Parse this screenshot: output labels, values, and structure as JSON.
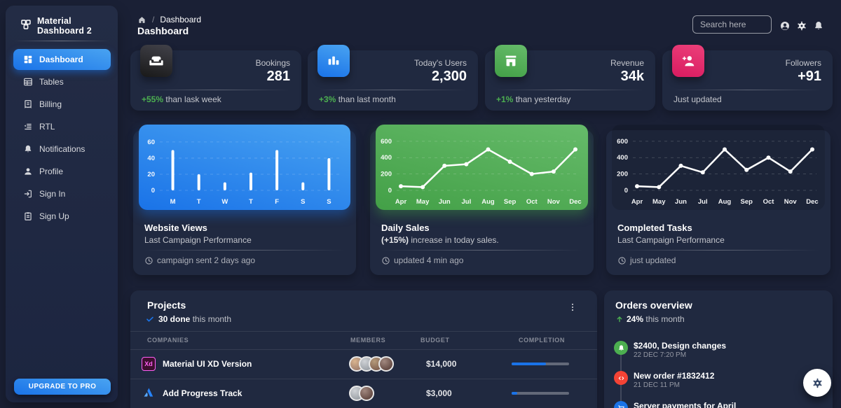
{
  "app": {
    "brand": "Material Dashboard 2"
  },
  "sidebar": {
    "items": [
      {
        "label": "Dashboard",
        "icon": "dashboard-icon",
        "active": true
      },
      {
        "label": "Tables",
        "icon": "table-icon",
        "active": false
      },
      {
        "label": "Billing",
        "icon": "receipt-icon",
        "active": false
      },
      {
        "label": "RTL",
        "icon": "rtl-icon",
        "active": false
      },
      {
        "label": "Notifications",
        "icon": "bell-icon",
        "active": false
      },
      {
        "label": "Profile",
        "icon": "person-icon",
        "active": false
      },
      {
        "label": "Sign In",
        "icon": "login-icon",
        "active": false
      },
      {
        "label": "Sign Up",
        "icon": "assignment-icon",
        "active": false
      }
    ],
    "upgrade_label": "UPGRADE TO PRO"
  },
  "header": {
    "breadcrumb_separator": "/",
    "breadcrumb_current": "Dashboard",
    "page_title": "Dashboard",
    "search_placeholder": "Search here",
    "icons": [
      "account-icon",
      "settings-icon",
      "bell-icon"
    ]
  },
  "stat_cards": [
    {
      "label": "Bookings",
      "value": "281",
      "delta": "+55%",
      "footer_rest": " than lask week",
      "icon": "weekend-icon",
      "accent": "dark"
    },
    {
      "label": "Today's Users",
      "value": "2,300",
      "delta": "+3%",
      "footer_rest": " than last month",
      "icon": "leaderboard-icon",
      "accent": "blue"
    },
    {
      "label": "Revenue",
      "value": "34k",
      "delta": "+1%",
      "footer_rest": " than yesterday",
      "icon": "store-icon",
      "accent": "green"
    },
    {
      "label": "Followers",
      "value": "+91",
      "delta": "",
      "footer_rest": "Just updated",
      "icon": "person-add-icon",
      "accent": "pink"
    }
  ],
  "chart_cards": [
    {
      "title": "Website Views",
      "subtitle_bold": "",
      "subtitle_rest": "Last Campaign Performance",
      "footer": "campaign sent 2 days ago"
    },
    {
      "title": "Daily Sales",
      "subtitle_bold": "(+15%)",
      "subtitle_rest": " increase in today sales.",
      "footer": "updated 4 min ago"
    },
    {
      "title": "Completed Tasks",
      "subtitle_bold": "",
      "subtitle_rest": "Last Campaign Performance",
      "footer": "just updated"
    }
  ],
  "chart_data": [
    {
      "type": "bar",
      "title": "Website Views",
      "categories": [
        "M",
        "T",
        "W",
        "T",
        "F",
        "S",
        "S"
      ],
      "values": [
        50,
        20,
        10,
        22,
        50,
        10,
        40
      ],
      "yticks": [
        0,
        20,
        40,
        60
      ],
      "ylim": [
        0,
        66
      ],
      "bar_color": "#ffffff",
      "panel_gradient": [
        "#49a3f1",
        "#1A73E8"
      ],
      "grid": "dashed-horizontal",
      "legend": "none"
    },
    {
      "type": "line",
      "title": "Daily Sales",
      "categories": [
        "Apr",
        "May",
        "Jun",
        "Jul",
        "Aug",
        "Sep",
        "Oct",
        "Nov",
        "Dec"
      ],
      "values": [
        50,
        40,
        300,
        320,
        500,
        350,
        200,
        230,
        500
      ],
      "yticks": [
        0,
        200,
        400,
        600
      ],
      "ylim": [
        0,
        650
      ],
      "line_color": "#ffffff",
      "panel_gradient": [
        "#66BB6A",
        "#43A047"
      ],
      "grid": "dashed-horizontal",
      "legend": "none"
    },
    {
      "type": "line",
      "title": "Completed Tasks",
      "categories": [
        "Apr",
        "May",
        "Jun",
        "Jul",
        "Aug",
        "Sep",
        "Oct",
        "Nov",
        "Dec"
      ],
      "values": [
        50,
        40,
        300,
        220,
        500,
        250,
        400,
        230,
        500
      ],
      "yticks": [
        0,
        200,
        400,
        600
      ],
      "ylim": [
        0,
        650
      ],
      "line_color": "#ffffff",
      "panel_gradient": null,
      "grid": "dashed-horizontal",
      "legend": "none"
    }
  ],
  "projects": {
    "title": "Projects",
    "done_bold": "30 done",
    "done_rest": " this month",
    "columns": [
      "COMPANIES",
      "MEMBERS",
      "BUDGET",
      "COMPLETION"
    ],
    "rows": [
      {
        "company": "Material UI XD Version",
        "logo": "adobe-xd-logo",
        "logo_text": "Xd",
        "members": 4,
        "budget": "$14,000",
        "completion": 60
      },
      {
        "company": "Add Progress Track",
        "logo": "atlassian-logo",
        "members": 2,
        "budget": "$3,000",
        "completion": 10
      }
    ]
  },
  "orders": {
    "title": "Orders overview",
    "delta_bold": "24%",
    "delta_rest": " this month",
    "items": [
      {
        "title": "$2400, Design changes",
        "time": "22 DEC 7:20 PM",
        "dot_color": "#4CAF50",
        "icon": "bell-icon"
      },
      {
        "title": "New order #1832412",
        "time": "21 DEC 11 PM",
        "dot_color": "#F44335",
        "icon": "code-icon"
      },
      {
        "title": "Server payments for April",
        "time": "",
        "dot_color": "#1A73E8",
        "icon": "cart-icon"
      }
    ]
  },
  "colors": {
    "bg": "#1a2035",
    "sidebar": "#1f283e",
    "card": "#202940",
    "blue": "#1A73E8",
    "blue_light": "#49a3f1",
    "success": "#4CAF50",
    "error": "#F44335",
    "pink": "#EC407A"
  }
}
